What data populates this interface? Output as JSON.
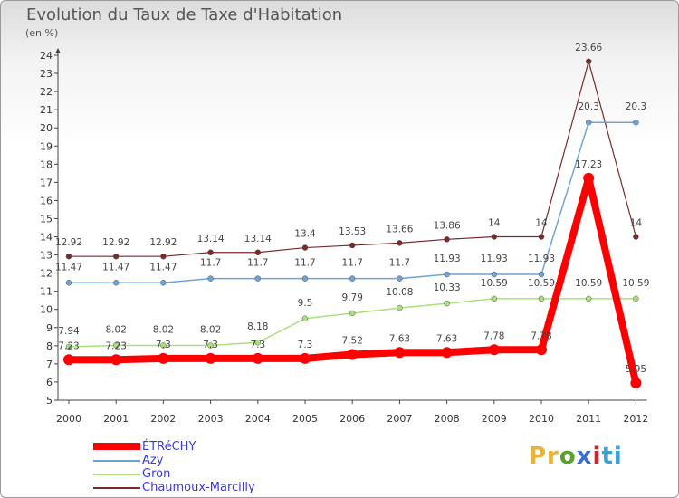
{
  "title": "Evolution du Taux de Taxe d'Habitation",
  "subtitle": "(en %)",
  "logo": {
    "parts": [
      "Pr",
      "o",
      "x",
      "i",
      "ti"
    ],
    "colors": [
      "#e8b33a",
      "#5aa22d",
      "#3b6ed0",
      "#d4242b",
      "#3b9fd8"
    ]
  },
  "chart_data": {
    "type": "line",
    "x": [
      "2000",
      "2001",
      "2002",
      "2003",
      "2004",
      "2005",
      "2006",
      "2007",
      "2008",
      "2009",
      "2010",
      "2011",
      "2012"
    ],
    "ylim": [
      5,
      24
    ],
    "yticks": [
      5,
      6,
      7,
      8,
      9,
      10,
      11,
      12,
      13,
      14,
      15,
      16,
      17,
      18,
      19,
      20,
      21,
      22,
      23,
      24
    ],
    "grid": false,
    "series": [
      {
        "name": "ÉTRéCHY",
        "color": "#ff0000",
        "width": 8,
        "marker": 6,
        "values": [
          7.23,
          7.23,
          7.3,
          7.3,
          7.3,
          7.3,
          7.52,
          7.63,
          7.63,
          7.78,
          7.78,
          17.23,
          5.95
        ],
        "labels": [
          "7.23",
          "7.23",
          "7.3",
          "7.3",
          "7.3",
          "7.3",
          "7.52",
          "7.63",
          "7.63",
          "7.78",
          "7.78",
          "17.23",
          "5.95"
        ]
      },
      {
        "name": "Azy",
        "color": "#6fa3d4",
        "width": 1.5,
        "marker": 3,
        "values": [
          11.47,
          11.47,
          11.47,
          11.7,
          11.7,
          11.7,
          11.7,
          11.7,
          11.93,
          11.93,
          11.93,
          20.3,
          20.3
        ],
        "labels": [
          "11.47",
          "11.47",
          "11.47",
          "11.7",
          "11.7",
          "11.7",
          "11.7",
          "11.7",
          "11.93",
          "11.93",
          "11.93",
          "20.3",
          "20.3"
        ]
      },
      {
        "name": "Gron",
        "color": "#a8e07a",
        "width": 1.5,
        "marker": 3,
        "values": [
          7.94,
          8.02,
          8.02,
          8.02,
          8.18,
          9.5,
          9.79,
          10.08,
          10.33,
          10.59,
          10.59,
          10.59,
          10.59
        ],
        "labels": [
          "7.94",
          "8.02",
          "8.02",
          "8.02",
          "8.18",
          "9.5",
          "9.79",
          "10.08",
          "10.33",
          "10.59",
          "10.59",
          "10.59",
          "10.59"
        ]
      },
      {
        "name": "Chaumoux-Marcilly",
        "color": "#7b2a2a",
        "width": 1.2,
        "marker": 3,
        "values": [
          12.92,
          12.92,
          12.92,
          13.14,
          13.14,
          13.4,
          13.53,
          13.66,
          13.86,
          14,
          14,
          23.66,
          14
        ],
        "labels": [
          "12.92",
          "12.92",
          "12.92",
          "13.14",
          "13.14",
          "13.4",
          "13.53",
          "13.66",
          "13.86",
          "14",
          "14",
          "23.66",
          "14"
        ]
      }
    ]
  }
}
